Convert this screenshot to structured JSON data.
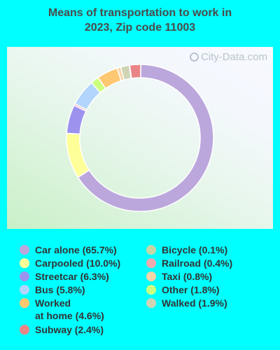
{
  "title_line1": "Means of transportation to work in",
  "title_line2": "2023, Zip code 11003",
  "watermark": "City-Data.com",
  "chart_data": {
    "type": "pie",
    "title": "Means of transportation to work in 2023, Zip code 11003",
    "donut": true,
    "slices": [
      {
        "label": "Car alone",
        "value": 65.7,
        "color": "#bca7dc"
      },
      {
        "label": "Carpooled",
        "value": 10.0,
        "color": "#ffff9a"
      },
      {
        "label": "Streetcar",
        "value": 6.3,
        "color": "#9d93ef"
      },
      {
        "label": "Railroad",
        "value": 0.4,
        "color": "#f1aab0"
      },
      {
        "label": "Bus",
        "value": 5.8,
        "color": "#b1d5fc"
      },
      {
        "label": "Other",
        "value": 1.8,
        "color": "#ccff80"
      },
      {
        "label": "Worked at home",
        "value": 4.6,
        "color": "#fec872"
      },
      {
        "label": "Taxi",
        "value": 0.8,
        "color": "#f8d4a9"
      },
      {
        "label": "Walked",
        "value": 1.9,
        "color": "#cfd4b5"
      },
      {
        "label": "Bicycle",
        "value": 0.1,
        "color": "#c6d6a7"
      },
      {
        "label": "Subway",
        "value": 2.4,
        "color": "#e98586"
      }
    ],
    "legend": [
      {
        "key": "car_alone",
        "label": "Car alone (65.7%)",
        "color": "#bca7dc"
      },
      {
        "key": "carpooled",
        "label": "Carpooled (10.0%)",
        "color": "#ffff9a"
      },
      {
        "key": "streetcar",
        "label": "Streetcar (6.3%)",
        "color": "#9d93ef"
      },
      {
        "key": "bus",
        "label": "Bus (5.8%)",
        "color": "#b1d5fc"
      },
      {
        "key": "worked_at_home",
        "label": "Worked\nat home (4.6%)",
        "color": "#fec872"
      },
      {
        "key": "subway",
        "label": "Subway (2.4%)",
        "color": "#e98586"
      },
      {
        "key": "bicycle",
        "label": "Bicycle (0.1%)",
        "color": "#c6d6a7"
      },
      {
        "key": "railroad",
        "label": "Railroad (0.4%)",
        "color": "#f1aab0"
      },
      {
        "key": "taxi",
        "label": "Taxi (0.8%)",
        "color": "#f8d4a9"
      },
      {
        "key": "other",
        "label": "Other (1.8%)",
        "color": "#ccff80"
      },
      {
        "key": "walked",
        "label": "Walked (1.9%)",
        "color": "#cfd4b5"
      }
    ]
  }
}
